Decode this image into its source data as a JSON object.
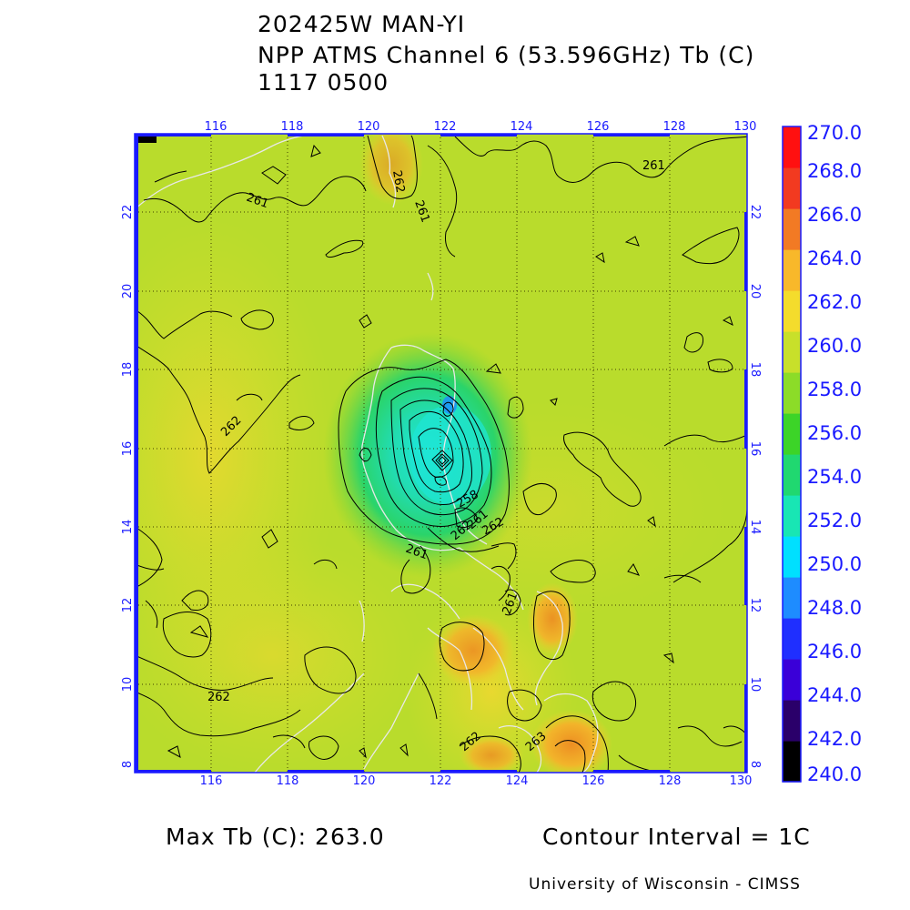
{
  "header": {
    "storm_id": "202425W MAN-YI",
    "product": "NPP ATMS Channel 6 (53.596GHz) Tb (C)",
    "datetime": "1117 0500"
  },
  "map": {
    "lon_ticks": [
      "116",
      "118",
      "120",
      "122",
      "124",
      "126",
      "128",
      "130"
    ],
    "lat_ticks": [
      "22",
      "20",
      "18",
      "16",
      "14",
      "12",
      "10",
      "8"
    ],
    "contour_labels": [
      "262",
      "261",
      "261",
      "261",
      "262",
      "262",
      "261",
      "258",
      "262",
      "261",
      "262",
      "263",
      "262",
      "261"
    ]
  },
  "colorbar": {
    "labels": [
      "270.0",
      "268.0",
      "266.0",
      "264.0",
      "262.0",
      "260.0",
      "258.0",
      "256.0",
      "254.0",
      "252.0",
      "250.0",
      "248.0",
      "246.0",
      "244.0",
      "242.0",
      "240.0"
    ],
    "colors": [
      "#000000",
      "#2a006a",
      "#3a00d8",
      "#1f2fff",
      "#1e8cff",
      "#00e0ff",
      "#18e6b4",
      "#20d870",
      "#3cd428",
      "#8cdc28",
      "#c8e02a",
      "#f4dc2c",
      "#f8b82a",
      "#f27a24",
      "#f23a20",
      "#ff1010"
    ]
  },
  "footer": {
    "max_tb": "Max Tb (C): 263.0",
    "contour_interval": "Contour Interval = 1C",
    "credit": "University of Wisconsin - CIMSS"
  },
  "colors": {
    "axis": "#1a1aff",
    "coastline": "#e0e0e0",
    "contour": "#000000",
    "gridline": "#404000"
  }
}
